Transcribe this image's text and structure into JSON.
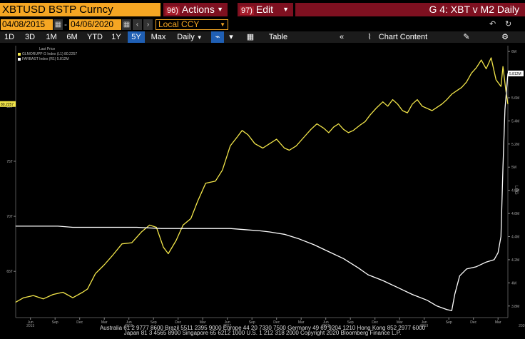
{
  "header": {
    "ticker": "XBTUSD BSTP Curncy",
    "actions_num": "96)",
    "actions_label": "Actions",
    "edit_num": "97)",
    "edit_label": "Edit",
    "title": "G 4: XBT v M2 Daily"
  },
  "dates": {
    "start": "04/08/2015",
    "end": "04/06/2020",
    "currency": "Local CCY"
  },
  "toolbar": {
    "ranges": [
      "1D",
      "3D",
      "1M",
      "6M",
      "YTD",
      "1Y",
      "5Y",
      "Max"
    ],
    "selected_range": "5Y",
    "frequency": "Daily",
    "table_label": "Table",
    "chart_content_label": "Chart Content"
  },
  "legend": {
    "title": "Last Price",
    "items": [
      {
        "label": "GLMORUPP G Index (L1) 80.2257",
        "color": "#f3e64a"
      },
      {
        "label": "FARBAST Index (R1) 5.812M",
        "color": "#ffffff"
      }
    ]
  },
  "colors": {
    "yellow": "#f3e64a",
    "white": "#ffffff",
    "orange": "#f5a623",
    "red": "#7e1020"
  },
  "footer": {
    "line1": "Australia 61 2 9777 8600 Brazil 5511 2395 9000 Europe 44 20 7330 7500 Germany 49 69 9204 1210 Hong Kong 852 2977 6000",
    "line2": "Japan 81 3 4565 8900        Singapore 65 6212 1000        U.S. 1 212 318 2000        Copyright 2020 Bloomberg Finance L.P."
  },
  "chart_data": {
    "type": "line",
    "x_tick_labels": [
      "Jun",
      "Sep",
      "Dec",
      "Mar",
      "Jun",
      "Sep",
      "Dec",
      "Mar",
      "Jun",
      "Sep",
      "Dec",
      "Mar",
      "Jun",
      "Sep",
      "Dec",
      "Mar",
      "Jun",
      "Sep",
      "Dec",
      "Mar"
    ],
    "x_year_labels": [
      "2015",
      "2016",
      "2017",
      "2018",
      "2019",
      "2020"
    ],
    "x_range": [
      2015.27,
      2020.27
    ],
    "left_axis": {
      "ticks": [
        65,
        70,
        75,
        80
      ],
      "tick_labels": [
        "65T",
        "70T",
        "75T",
        "80T"
      ],
      "range": [
        60.8,
        85.5
      ]
    },
    "right_axis": {
      "ticks": [
        3.8,
        4.0,
        4.2,
        4.4,
        4.6,
        4.8,
        5.0,
        5.2,
        5.4,
        5.6,
        5.8,
        6.0
      ],
      "tick_labels": [
        "3.8M",
        "4M",
        "4.2M",
        "4.4M",
        "4.6M",
        "4.8M",
        "5M",
        "5.2M",
        "5.4M",
        "5.6M",
        "5.8M",
        "6M"
      ],
      "range": [
        3.7,
        6.05
      ],
      "label": "LOG"
    },
    "last_value_labels": {
      "left": "80.2257",
      "right": "5.812M"
    },
    "series": [
      {
        "name": "GLMORUPP G Index",
        "axis": "left",
        "points": [
          [
            2015.27,
            62.2
          ],
          [
            2015.35,
            62.6
          ],
          [
            2015.45,
            62.8
          ],
          [
            2015.55,
            62.5
          ],
          [
            2015.65,
            62.9
          ],
          [
            2015.75,
            63.1
          ],
          [
            2015.85,
            62.6
          ],
          [
            2015.95,
            63.1
          ],
          [
            2016.0,
            63.4
          ],
          [
            2016.08,
            64.8
          ],
          [
            2016.17,
            65.6
          ],
          [
            2016.25,
            66.4
          ],
          [
            2016.35,
            67.5
          ],
          [
            2016.45,
            67.6
          ],
          [
            2016.55,
            68.6
          ],
          [
            2016.63,
            69.2
          ],
          [
            2016.7,
            69.0
          ],
          [
            2016.77,
            67.2
          ],
          [
            2016.82,
            66.6
          ],
          [
            2016.9,
            67.8
          ],
          [
            2016.97,
            69.2
          ],
          [
            2017.05,
            69.8
          ],
          [
            2017.12,
            71.4
          ],
          [
            2017.2,
            73.0
          ],
          [
            2017.3,
            73.2
          ],
          [
            2017.37,
            74.2
          ],
          [
            2017.45,
            76.4
          ],
          [
            2017.52,
            77.2
          ],
          [
            2017.57,
            77.8
          ],
          [
            2017.63,
            77.4
          ],
          [
            2017.7,
            76.6
          ],
          [
            2017.78,
            76.2
          ],
          [
            2017.85,
            76.6
          ],
          [
            2017.92,
            77.0
          ],
          [
            2018.0,
            76.2
          ],
          [
            2018.05,
            76.0
          ],
          [
            2018.12,
            76.4
          ],
          [
            2018.2,
            77.2
          ],
          [
            2018.27,
            77.9
          ],
          [
            2018.33,
            78.4
          ],
          [
            2018.4,
            78.0
          ],
          [
            2018.45,
            77.6
          ],
          [
            2018.5,
            78.1
          ],
          [
            2018.55,
            78.4
          ],
          [
            2018.6,
            77.9
          ],
          [
            2018.65,
            77.6
          ],
          [
            2018.7,
            77.8
          ],
          [
            2018.77,
            78.3
          ],
          [
            2018.82,
            78.6
          ],
          [
            2018.87,
            79.2
          ],
          [
            2018.93,
            79.8
          ],
          [
            2019.0,
            80.4
          ],
          [
            2019.05,
            80.0
          ],
          [
            2019.1,
            80.6
          ],
          [
            2019.15,
            80.2
          ],
          [
            2019.2,
            79.6
          ],
          [
            2019.25,
            79.4
          ],
          [
            2019.3,
            80.2
          ],
          [
            2019.35,
            80.6
          ],
          [
            2019.4,
            80.0
          ],
          [
            2019.45,
            79.8
          ],
          [
            2019.5,
            79.6
          ],
          [
            2019.55,
            79.9
          ],
          [
            2019.6,
            80.2
          ],
          [
            2019.65,
            80.6
          ],
          [
            2019.7,
            81.1
          ],
          [
            2019.75,
            81.4
          ],
          [
            2019.8,
            81.7
          ],
          [
            2019.85,
            82.2
          ],
          [
            2019.9,
            83.0
          ],
          [
            2019.95,
            83.5
          ],
          [
            2020.0,
            84.2
          ],
          [
            2020.05,
            83.4
          ],
          [
            2020.1,
            84.4
          ],
          [
            2020.15,
            82.4
          ],
          [
            2020.2,
            81.8
          ],
          [
            2020.22,
            83.6
          ],
          [
            2020.25,
            81.4
          ],
          [
            2020.27,
            80.2
          ]
        ]
      },
      {
        "name": "FARBAST Index",
        "axis": "right",
        "points": [
          [
            2015.27,
            4.49
          ],
          [
            2015.4,
            4.49
          ],
          [
            2015.55,
            4.49
          ],
          [
            2015.7,
            4.49
          ],
          [
            2015.85,
            4.48
          ],
          [
            2016.0,
            4.48
          ],
          [
            2016.25,
            4.48
          ],
          [
            2016.5,
            4.48
          ],
          [
            2016.75,
            4.47
          ],
          [
            2017.0,
            4.47
          ],
          [
            2017.25,
            4.47
          ],
          [
            2017.45,
            4.47
          ],
          [
            2017.6,
            4.46
          ],
          [
            2017.75,
            4.45
          ],
          [
            2017.85,
            4.44
          ],
          [
            2018.0,
            4.42
          ],
          [
            2018.15,
            4.38
          ],
          [
            2018.3,
            4.33
          ],
          [
            2018.45,
            4.27
          ],
          [
            2018.6,
            4.21
          ],
          [
            2018.75,
            4.13
          ],
          [
            2018.85,
            4.07
          ],
          [
            2019.0,
            4.02
          ],
          [
            2019.15,
            3.96
          ],
          [
            2019.3,
            3.9
          ],
          [
            2019.45,
            3.85
          ],
          [
            2019.55,
            3.8
          ],
          [
            2019.65,
            3.77
          ],
          [
            2019.7,
            3.76
          ],
          [
            2019.73,
            3.9
          ],
          [
            2019.78,
            4.06
          ],
          [
            2019.85,
            4.12
          ],
          [
            2019.95,
            4.14
          ],
          [
            2020.05,
            4.18
          ],
          [
            2020.13,
            4.2
          ],
          [
            2020.17,
            4.26
          ],
          [
            2020.2,
            4.4
          ],
          [
            2020.22,
            5.0
          ],
          [
            2020.24,
            5.5
          ],
          [
            2020.27,
            5.81
          ]
        ]
      }
    ]
  }
}
